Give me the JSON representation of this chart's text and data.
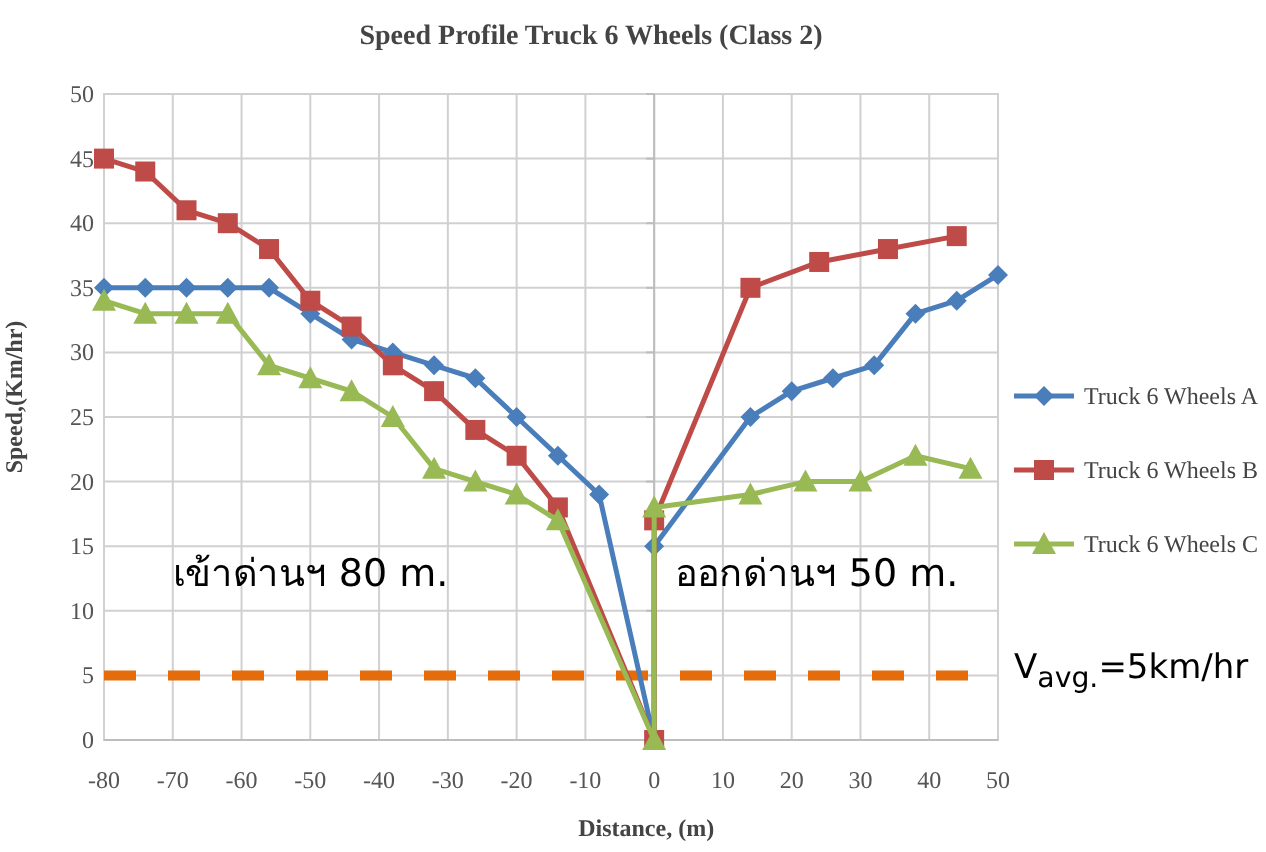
{
  "chart_data": {
    "type": "line",
    "title": "Speed Profile Truck 6 Wheels (Class 2)",
    "xlabel": "Distance, (m)",
    "ylabel": "Speed,(Km/hr)",
    "xlim": [
      -80,
      50
    ],
    "xticks": [
      -80,
      -70,
      -60,
      -50,
      -40,
      -30,
      -20,
      -10,
      0,
      10,
      20,
      30,
      40,
      50
    ],
    "ylim": [
      0,
      50
    ],
    "yticks": [
      0,
      5,
      10,
      15,
      20,
      25,
      30,
      35,
      40,
      45,
      50
    ],
    "grid": true,
    "legend": "right",
    "line_style": "solid",
    "series": [
      {
        "name": "Truck 6 Wheels A",
        "color": "#4a7ebb",
        "marker": "diamond",
        "x": [
          -80,
          -74,
          -68,
          -62,
          -56,
          -50,
          -44,
          -38,
          -32,
          -26,
          -20,
          -14,
          -8,
          0,
          0,
          14,
          20,
          26,
          32,
          38,
          44,
          50
        ],
        "values": [
          35,
          35,
          35,
          35,
          35,
          33,
          31,
          30,
          29,
          28,
          25,
          22,
          19,
          0,
          15,
          25,
          27,
          28,
          29,
          33,
          34,
          36
        ]
      },
      {
        "name": "Truck 6 Wheels B",
        "color": "#be4b48",
        "marker": "square",
        "x": [
          -80,
          -74,
          -68,
          -62,
          -56,
          -50,
          -44,
          -38,
          -32,
          -26,
          -20,
          -14,
          0,
          0,
          14,
          24,
          34,
          44
        ],
        "values": [
          45,
          44,
          41,
          40,
          38,
          34,
          32,
          29,
          27,
          24,
          22,
          18,
          0,
          17,
          35,
          37,
          38,
          39
        ]
      },
      {
        "name": "Truck 6 Wheels C",
        "color": "#98b954",
        "marker": "triangle",
        "x": [
          -80,
          -74,
          -68,
          -62,
          -56,
          -50,
          -44,
          -38,
          -32,
          -26,
          -20,
          -14,
          0,
          0,
          14,
          22,
          30,
          38,
          46
        ],
        "values": [
          34,
          33,
          33,
          33,
          29,
          28,
          27,
          25,
          21,
          20,
          19,
          17,
          0,
          18,
          19,
          20,
          20,
          22,
          21
        ]
      }
    ],
    "ref_lines": [
      {
        "axis": "y",
        "value": 5,
        "label": "V$_{avg.}$=5km/hr",
        "color": "#e46c0a",
        "line_style": "dashed"
      }
    ],
    "annotations": [
      "เข้าด่านฯ 80 m.",
      "ออกด่านฯ 50 m."
    ]
  }
}
